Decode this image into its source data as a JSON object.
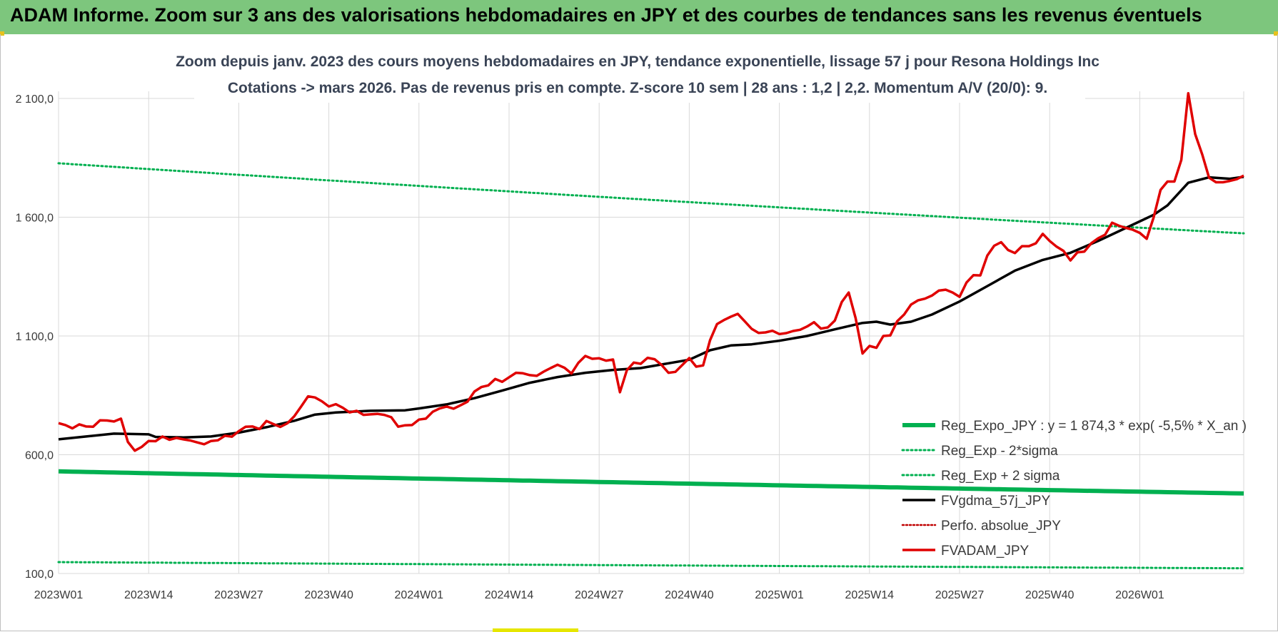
{
  "banner": {
    "title": "ADAM Informe. Zoom sur 3 ans des valorisations hebdomadaires en JPY et des courbes de tendances sans les revenus éventuels"
  },
  "colors": {
    "banner_bg": "#7dc67d",
    "green": "#00b050",
    "black": "#000000",
    "red": "#e00000",
    "red_dotted": "#c00000",
    "grid": "#d9d9d9"
  },
  "chart_data": {
    "type": "line",
    "title_line1": "Zoom depuis janv. 2023 des cours moyens hebdomadaires en JPY, tendance exponentielle, lissage 57 j pour Resona Holdings Inc",
    "title_line2": "Cotations -> mars 2026. Pas de revenus pris en compte. Z-score 10 sem | 28 ans : 1,2 | 2,2. Momentum A/V (20/0): 9.",
    "ylim": [
      100,
      2100
    ],
    "y_ticks": [
      100,
      600,
      1100,
      1600,
      2100
    ],
    "y_tick_labels": [
      "100,0",
      "600,0",
      "1 100,0",
      "1 600,0",
      "2 100,0"
    ],
    "x_tick_labels": [
      "2023W01",
      "2023W14",
      "2023W27",
      "2023W40",
      "2024W01",
      "2024W14",
      "2024W27",
      "2024W40",
      "2025W01",
      "2025W14",
      "2025W27",
      "2025W40",
      "2026W01"
    ],
    "x_tick_week_index": [
      0,
      13,
      26,
      39,
      52,
      65,
      78,
      91,
      104,
      117,
      130,
      143,
      156
    ],
    "n_weeks": 172,
    "legend": [
      {
        "key": "reg_expo",
        "label": "Reg_Expo_JPY : y = 1 874,3 * exp( -5,5% *  X_an )"
      },
      {
        "key": "reg_minus",
        "label": "Reg_Exp - 2*sigma"
      },
      {
        "key": "reg_plus",
        "label": "Reg_Exp + 2 sigma"
      },
      {
        "key": "fvgdma",
        "label": "FVgdma_57j_JPY"
      },
      {
        "key": "perfo",
        "label": "Perfo. absolue_JPY"
      },
      {
        "key": "fvadam",
        "label": "FVADAM_JPY"
      }
    ],
    "series": [
      {
        "key": "reg_expo",
        "name": "Reg_Expo_JPY",
        "start": 530,
        "end": 437
      },
      {
        "key": "reg_minus",
        "name": "Reg_Exp - 2*sigma",
        "start": 148,
        "end": 122
      },
      {
        "key": "reg_plus",
        "name": "Reg_Exp + 2 sigma",
        "start": 1827,
        "end": 1532
      },
      {
        "key": "fvgdma",
        "name": "FVgdma_57j_JPY",
        "points": [
          [
            0,
            665
          ],
          [
            4,
            677
          ],
          [
            8,
            689
          ],
          [
            13,
            686
          ],
          [
            14,
            675
          ],
          [
            18,
            673
          ],
          [
            22,
            677
          ],
          [
            26,
            693
          ],
          [
            30,
            716
          ],
          [
            34,
            743
          ],
          [
            37,
            769
          ],
          [
            40,
            778
          ],
          [
            45,
            785
          ],
          [
            50,
            787
          ],
          [
            52,
            795
          ],
          [
            56,
            812
          ],
          [
            60,
            838
          ],
          [
            64,
            870
          ],
          [
            68,
            903
          ],
          [
            72,
            927
          ],
          [
            76,
            945
          ],
          [
            80,
            957
          ],
          [
            84,
            965
          ],
          [
            88,
            985
          ],
          [
            91,
            1000
          ],
          [
            94,
            1040
          ],
          [
            97,
            1060
          ],
          [
            100,
            1065
          ],
          [
            104,
            1080
          ],
          [
            108,
            1100
          ],
          [
            112,
            1128
          ],
          [
            116,
            1155
          ],
          [
            118,
            1160
          ],
          [
            120,
            1148
          ],
          [
            123,
            1160
          ],
          [
            126,
            1190
          ],
          [
            130,
            1245
          ],
          [
            134,
            1310
          ],
          [
            138,
            1375
          ],
          [
            142,
            1420
          ],
          [
            146,
            1450
          ],
          [
            150,
            1500
          ],
          [
            154,
            1555
          ],
          [
            158,
            1610
          ],
          [
            160,
            1650
          ],
          [
            163,
            1745
          ],
          [
            166,
            1768
          ],
          [
            169,
            1762
          ],
          [
            171,
            1770
          ]
        ]
      },
      {
        "key": "fvadam",
        "name": "FVADAM_JPY",
        "points": [
          [
            0,
            733
          ],
          [
            1,
            725
          ],
          [
            2,
            711
          ],
          [
            3,
            728
          ],
          [
            4,
            719
          ],
          [
            5,
            718
          ],
          [
            6,
            745
          ],
          [
            7,
            744
          ],
          [
            8,
            740
          ],
          [
            9,
            752
          ],
          [
            10,
            654
          ],
          [
            11,
            617
          ],
          [
            12,
            633
          ],
          [
            13,
            658
          ],
          [
            14,
            657
          ],
          [
            15,
            677
          ],
          [
            16,
            663
          ],
          [
            17,
            671
          ],
          [
            18,
            665
          ],
          [
            19,
            660
          ],
          [
            20,
            652
          ],
          [
            21,
            644
          ],
          [
            22,
            658
          ],
          [
            23,
            661
          ],
          [
            24,
            680
          ],
          [
            25,
            676
          ],
          [
            26,
            699
          ],
          [
            27,
            718
          ],
          [
            28,
            719
          ],
          [
            29,
            708
          ],
          [
            30,
            742
          ],
          [
            31,
            729
          ],
          [
            32,
            717
          ],
          [
            33,
            732
          ],
          [
            34,
            762
          ],
          [
            35,
            803
          ],
          [
            36,
            846
          ],
          [
            37,
            841
          ],
          [
            38,
            825
          ],
          [
            39,
            803
          ],
          [
            40,
            813
          ],
          [
            41,
            798
          ],
          [
            42,
            778
          ],
          [
            43,
            785
          ],
          [
            44,
            768
          ],
          [
            45,
            770
          ],
          [
            46,
            772
          ],
          [
            47,
            768
          ],
          [
            48,
            758
          ],
          [
            49,
            718
          ],
          [
            50,
            724
          ],
          [
            51,
            725
          ],
          [
            52,
            748
          ],
          [
            53,
            752
          ],
          [
            54,
            781
          ],
          [
            55,
            795
          ],
          [
            56,
            803
          ],
          [
            57,
            794
          ],
          [
            58,
            808
          ],
          [
            59,
            823
          ],
          [
            60,
            866
          ],
          [
            61,
            885
          ],
          [
            62,
            892
          ],
          [
            63,
            919
          ],
          [
            64,
            907
          ],
          [
            65,
            926
          ],
          [
            66,
            945
          ],
          [
            67,
            943
          ],
          [
            68,
            935
          ],
          [
            69,
            932
          ],
          [
            70,
            950
          ],
          [
            71,
            965
          ],
          [
            72,
            979
          ],
          [
            73,
            966
          ],
          [
            74,
            942
          ],
          [
            75,
            987
          ],
          [
            76,
            1016
          ],
          [
            77,
            1004
          ],
          [
            78,
            1006
          ],
          [
            79,
            996
          ],
          [
            80,
            1001
          ],
          [
            81,
            863
          ],
          [
            82,
            956
          ],
          [
            83,
            988
          ],
          [
            84,
            983
          ],
          [
            85,
            1008
          ],
          [
            86,
            1002
          ],
          [
            87,
            978
          ],
          [
            88,
            945
          ],
          [
            89,
            949
          ],
          [
            90,
            978
          ],
          [
            91,
            1007
          ],
          [
            92,
            971
          ],
          [
            93,
            976
          ],
          [
            94,
            1082
          ],
          [
            95,
            1150
          ],
          [
            96,
            1167
          ],
          [
            97,
            1181
          ],
          [
            98,
            1193
          ],
          [
            99,
            1162
          ],
          [
            100,
            1130
          ],
          [
            101,
            1113
          ],
          [
            102,
            1115
          ],
          [
            103,
            1122
          ],
          [
            104,
            1108
          ],
          [
            105,
            1112
          ],
          [
            106,
            1121
          ],
          [
            107,
            1126
          ],
          [
            108,
            1140
          ],
          [
            109,
            1158
          ],
          [
            110,
            1131
          ],
          [
            111,
            1136
          ],
          [
            112,
            1165
          ],
          [
            113,
            1243
          ],
          [
            114,
            1283
          ],
          [
            115,
            1175
          ],
          [
            116,
            1026
          ],
          [
            117,
            1058
          ],
          [
            118,
            1050
          ],
          [
            119,
            1100
          ],
          [
            120,
            1102
          ],
          [
            121,
            1162
          ],
          [
            122,
            1190
          ],
          [
            123,
            1232
          ],
          [
            124,
            1250
          ],
          [
            125,
            1257
          ],
          [
            126,
            1270
          ],
          [
            127,
            1291
          ],
          [
            128,
            1295
          ],
          [
            129,
            1283
          ],
          [
            130,
            1265
          ],
          [
            131,
            1325
          ],
          [
            132,
            1356
          ],
          [
            133,
            1355
          ],
          [
            134,
            1438
          ],
          [
            135,
            1480
          ],
          [
            136,
            1495
          ],
          [
            137,
            1462
          ],
          [
            138,
            1449
          ],
          [
            139,
            1478
          ],
          [
            140,
            1478
          ],
          [
            141,
            1490
          ],
          [
            142,
            1530
          ],
          [
            143,
            1500
          ],
          [
            144,
            1476
          ],
          [
            145,
            1458
          ],
          [
            146,
            1418
          ],
          [
            147,
            1452
          ],
          [
            148,
            1455
          ],
          [
            149,
            1490
          ],
          [
            150,
            1511
          ],
          [
            151,
            1526
          ],
          [
            152,
            1577
          ],
          [
            153,
            1564
          ],
          [
            154,
            1555
          ],
          [
            155,
            1547
          ],
          [
            156,
            1534
          ],
          [
            157,
            1509
          ],
          [
            158,
            1599
          ],
          [
            159,
            1715
          ],
          [
            160,
            1750
          ],
          [
            161,
            1750
          ],
          [
            162,
            1841
          ],
          [
            163,
            2122
          ],
          [
            164,
            1950
          ],
          [
            165,
            1865
          ],
          [
            166,
            1766
          ],
          [
            167,
            1747
          ],
          [
            168,
            1747
          ],
          [
            169,
            1753
          ],
          [
            170,
            1760
          ],
          [
            171,
            1775
          ]
        ]
      }
    ]
  }
}
